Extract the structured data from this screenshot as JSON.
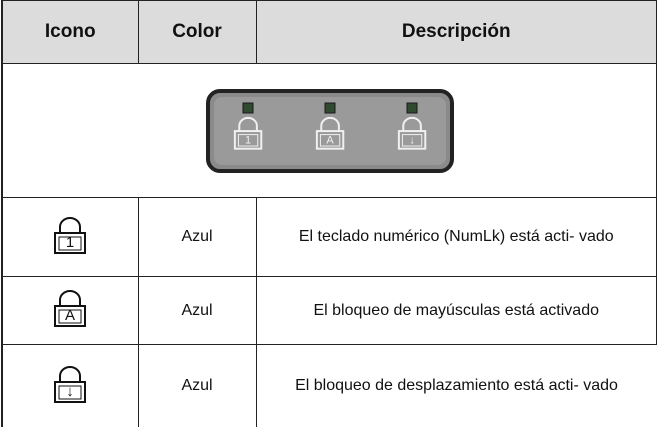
{
  "table": {
    "header": [
      "Icono",
      "Color",
      "Descripción"
    ],
    "panel": {
      "icons": [
        "1",
        "A",
        "↓"
      ]
    },
    "rows": [
      {
        "icon": "1",
        "color": "Azul",
        "description": "El teclado numérico (NumLk) está acti- vado"
      },
      {
        "icon": "A",
        "color": "Azul",
        "description": "El bloqueo de mayúsculas está activado"
      },
      {
        "icon": "↓",
        "color": "Azul",
        "description": "El bloqueo de desplazamiento está acti- vado"
      }
    ]
  }
}
